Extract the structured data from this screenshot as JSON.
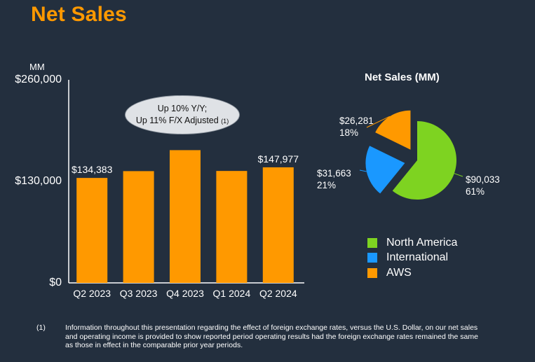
{
  "title": "Net Sales",
  "bar_chart": {
    "unit": "MM",
    "callout": {
      "line1": "Up 10% Y/Y;",
      "line2": "Up 11% F/X Adjusted",
      "footnote_ref": "(1)"
    }
  },
  "pie_chart": {
    "title": "Net Sales (MM)"
  },
  "footnote": {
    "number": "(1)",
    "text": "Information throughout this presentation regarding the effect of foreign exchange rates, versus the U.S. Dollar, on our net sales and operating income is provided to show reported period operating results had the foreign exchange rates remained the same as those in effect in the comparable prior year periods."
  },
  "colors": {
    "background": "#232f3e",
    "title": "#ff9900",
    "bar": "#ff9900",
    "north_america": "#7ed321",
    "international": "#1a98ff",
    "aws": "#ff9900"
  },
  "chart_data": [
    {
      "type": "bar",
      "categories": [
        "Q2 2023",
        "Q3 2023",
        "Q4 2023",
        "Q1 2024",
        "Q2 2024"
      ],
      "values": [
        134383,
        143083,
        169961,
        143313,
        147977
      ],
      "data_labels": [
        "$134,383",
        "",
        "",
        "",
        "$147,977"
      ],
      "yticks": [
        "$0",
        "$130,000",
        "$260,000"
      ],
      "ytick_values": [
        0,
        130000,
        260000
      ],
      "ylim": [
        0,
        260000
      ],
      "ylabel": "MM",
      "grid": false
    },
    {
      "type": "pie",
      "title": "Net Sales (MM)",
      "labels": [
        "North America",
        "International",
        "AWS"
      ],
      "values": [
        90033,
        31663,
        26281
      ],
      "value_labels": [
        "$90,033",
        "$31,663",
        "$26,281"
      ],
      "percent_labels": [
        "61%",
        "21%",
        "18%"
      ],
      "colors": [
        "#7ed321",
        "#1a98ff",
        "#ff9900"
      ],
      "legend": "bottom"
    }
  ]
}
